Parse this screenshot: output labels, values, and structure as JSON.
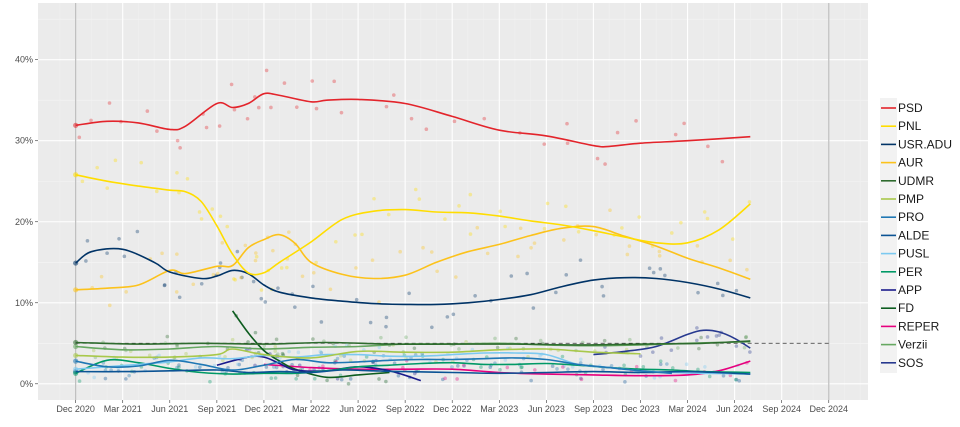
{
  "chart_data": {
    "type": "line",
    "title": "",
    "xlabel": "",
    "ylabel": "",
    "ylim": [
      -2,
      47
    ],
    "y_ticks": [
      0,
      10,
      20,
      30,
      40
    ],
    "y_tick_labels": [
      "0%",
      "10%",
      "20%",
      "30%",
      "40%"
    ],
    "x_range_months": [
      -2.4,
      50.5
    ],
    "x_ticks": [
      0,
      3,
      6,
      9,
      12,
      15,
      18,
      21,
      24,
      27,
      30,
      33,
      36,
      39,
      42,
      45,
      48
    ],
    "x_tick_labels": [
      "Dec 2020",
      "Mar 2021",
      "Jun 2021",
      "Sep 2021",
      "Dec 2021",
      "Mar 2022",
      "Jun 2022",
      "Sep 2022",
      "Dec 2022",
      "Mar 2023",
      "Jun 2023",
      "Sep 2023",
      "Dec 2023",
      "Mar 2024",
      "Jun 2024",
      "Sep 2024",
      "Dec 2024"
    ],
    "x_unit": "months since Dec 2020",
    "grid": true,
    "legend_position": "right",
    "reference_lines": {
      "vertical": [
        0,
        48
      ],
      "threshold": {
        "value": 5,
        "from": 0,
        "to": 48,
        "style": "dashed"
      }
    },
    "series": [
      {
        "name": "PSD",
        "color": "#e3242b",
        "x": [
          0,
          2,
          4,
          6,
          7,
          9,
          10,
          11,
          12,
          13,
          15,
          16,
          18,
          21,
          24,
          27,
          30,
          33,
          34,
          36,
          39,
          43
        ],
        "values": [
          31.9,
          32.4,
          32.2,
          31.4,
          31.8,
          34.6,
          34.1,
          34.6,
          35.8,
          35.6,
          34.8,
          35.0,
          35.1,
          34.6,
          33.0,
          31.3,
          30.6,
          29.4,
          29.3,
          29.7,
          30.0,
          30.5
        ]
      },
      {
        "name": "PNL",
        "color": "#ffdd00",
        "x": [
          0,
          2,
          4,
          6,
          7,
          8,
          9,
          10,
          11,
          12,
          13,
          15,
          17,
          19,
          21,
          23,
          25,
          27,
          29,
          31,
          33,
          35,
          37,
          39,
          41,
          43
        ],
        "values": [
          25.8,
          25.0,
          24.4,
          23.9,
          23.7,
          22.5,
          19.5,
          16.0,
          13.7,
          13.7,
          15.0,
          17.5,
          20.3,
          21.3,
          21.5,
          21.2,
          21.1,
          20.7,
          20.1,
          19.6,
          18.9,
          18.1,
          17.4,
          17.4,
          19.0,
          22.2
        ]
      },
      {
        "name": "USR.ADU",
        "color": "#003366",
        "x": [
          0,
          1,
          3,
          5,
          6,
          8,
          9,
          10,
          11,
          12,
          13,
          15,
          17,
          19,
          21,
          23,
          25,
          27,
          29,
          31,
          33,
          35,
          37,
          39,
          41,
          43
        ],
        "values": [
          14.9,
          16.3,
          16.6,
          15.0,
          13.8,
          13.0,
          13.3,
          14.0,
          13.6,
          12.2,
          11.3,
          10.6,
          10.2,
          9.9,
          9.8,
          9.8,
          10.0,
          10.4,
          11.0,
          12.0,
          12.8,
          13.1,
          13.0,
          12.5,
          11.7,
          10.6
        ]
      },
      {
        "name": "AUR",
        "color": "#fcc21b",
        "x": [
          0,
          2,
          4,
          6,
          7,
          9,
          10,
          11,
          12,
          13,
          14,
          15,
          17,
          19,
          21,
          23,
          25,
          27,
          29,
          31,
          33,
          35,
          37,
          39,
          41,
          43
        ],
        "values": [
          11.6,
          11.8,
          12.2,
          14.0,
          13.6,
          14.5,
          14.6,
          16.8,
          17.8,
          18.4,
          17.3,
          15.0,
          13.5,
          13.0,
          13.4,
          15.0,
          16.3,
          17.2,
          18.3,
          19.2,
          19.4,
          18.2,
          17.0,
          15.5,
          14.3,
          12.9
        ]
      },
      {
        "name": "UDMR",
        "color": "#2e6b2e",
        "x": [
          0,
          4,
          8,
          12,
          16,
          20,
          24,
          28,
          32,
          36,
          40,
          43
        ],
        "values": [
          5.1,
          4.9,
          5.0,
          4.9,
          5.1,
          4.9,
          4.9,
          4.9,
          4.8,
          4.9,
          5.0,
          5.3
        ]
      },
      {
        "name": "PMP",
        "color": "#a8c84a",
        "x": [
          0,
          3,
          6,
          9,
          10,
          12,
          15,
          18,
          21,
          24,
          27,
          30,
          33,
          36
        ],
        "values": [
          3.5,
          3.3,
          3.3,
          3.6,
          4.3,
          3.6,
          3.2,
          4.0,
          3.9,
          3.9,
          4.2,
          4.3,
          3.9,
          3.7
        ]
      },
      {
        "name": "PRO",
        "color": "#1f77b4",
        "x": [
          0,
          2,
          4,
          6,
          8,
          10,
          12,
          14,
          16,
          18,
          20,
          22,
          24,
          26,
          28,
          30,
          32,
          34,
          36,
          38
        ],
        "values": [
          2.8,
          2.1,
          2.2,
          2.9,
          2.4,
          1.7,
          2.3,
          3.0,
          2.6,
          2.7,
          2.9,
          3.0,
          3.0,
          3.1,
          3.2,
          3.0,
          2.4,
          2.0,
          1.6,
          1.3
        ]
      },
      {
        "name": "ALDE",
        "color": "#0b5394",
        "x": [
          0,
          3,
          6,
          9,
          11,
          13,
          15,
          17,
          19,
          21,
          24,
          27,
          30,
          33,
          36,
          39,
          42,
          43
        ],
        "values": [
          1.5,
          1.5,
          1.6,
          1.7,
          1.4,
          1.5,
          1.4,
          1.7,
          1.6,
          1.5,
          1.4,
          1.3,
          1.4,
          1.5,
          1.4,
          1.5,
          1.3,
          1.2
        ]
      },
      {
        "name": "PUSL",
        "color": "#7cc9f0",
        "x": [
          0,
          2,
          4,
          6,
          8,
          10,
          12,
          14,
          16,
          18,
          20,
          22,
          24,
          26,
          28,
          30,
          32,
          34,
          36,
          38,
          40,
          43
        ],
        "values": [
          1.8,
          2.1,
          2.4,
          2.7,
          3.2,
          3.1,
          3.5,
          3.3,
          3.6,
          3.6,
          3.4,
          3.4,
          3.6,
          3.8,
          3.8,
          3.6,
          2.4,
          2.0,
          1.6,
          1.4,
          1.3,
          1.2
        ]
      },
      {
        "name": "PER",
        "color": "#009966",
        "x": [
          0,
          2,
          4,
          6,
          8,
          10,
          12,
          14,
          16,
          18,
          20,
          22,
          24,
          26,
          28,
          30,
          32,
          34,
          36,
          38,
          40,
          43
        ],
        "values": [
          1.3,
          2.9,
          2.6,
          1.9,
          1.4,
          1.2,
          1.3,
          1.3,
          1.6,
          2.1,
          2.3,
          2.5,
          2.6,
          2.4,
          2.4,
          2.5,
          2.3,
          2.0,
          1.8,
          1.7,
          1.5,
          1.4
        ]
      },
      {
        "name": "APP",
        "color": "#1a1a8c",
        "x": [
          9,
          11,
          12,
          13,
          14,
          16,
          18,
          20,
          22
        ],
        "values": [
          2.3,
          3.3,
          3.3,
          2.5,
          1.7,
          1.6,
          2.1,
          1.6,
          0.4
        ]
      },
      {
        "name": "FD",
        "color": "#0d5c1f",
        "x": [
          10,
          11,
          12,
          13,
          14,
          16,
          18,
          20
        ],
        "values": [
          9.0,
          6.3,
          4.1,
          2.8,
          1.8,
          0.8,
          1.1,
          1.4
        ]
      },
      {
        "name": "REPER",
        "color": "#e6007e",
        "x": [
          12,
          15,
          18,
          21,
          24,
          27,
          30,
          33,
          36,
          39,
          41,
          43
        ],
        "values": [
          2.4,
          2.0,
          1.8,
          1.8,
          1.8,
          1.4,
          1.2,
          1.1,
          1.0,
          1.1,
          1.6,
          2.8
        ]
      },
      {
        "name": "Verzii",
        "color": "#66a861",
        "x": [
          0,
          3,
          6,
          9,
          12,
          15,
          18,
          21,
          24,
          27,
          30,
          33,
          36,
          39,
          43
        ],
        "values": [
          4.6,
          4.2,
          4.3,
          4.6,
          4.3,
          4.5,
          4.6,
          4.9,
          4.9,
          5.0,
          4.8,
          4.7,
          4.8,
          5.0,
          5.2
        ]
      },
      {
        "name": "SOS",
        "color": "#27398f",
        "x": [
          33,
          35,
          37,
          39,
          40,
          41,
          42,
          43
        ],
        "values": [
          3.6,
          4.0,
          4.6,
          6.1,
          6.6,
          6.4,
          5.6,
          4.4
        ]
      }
    ],
    "scatter_points_note": "Individual poll results shown as faint points around each series"
  }
}
